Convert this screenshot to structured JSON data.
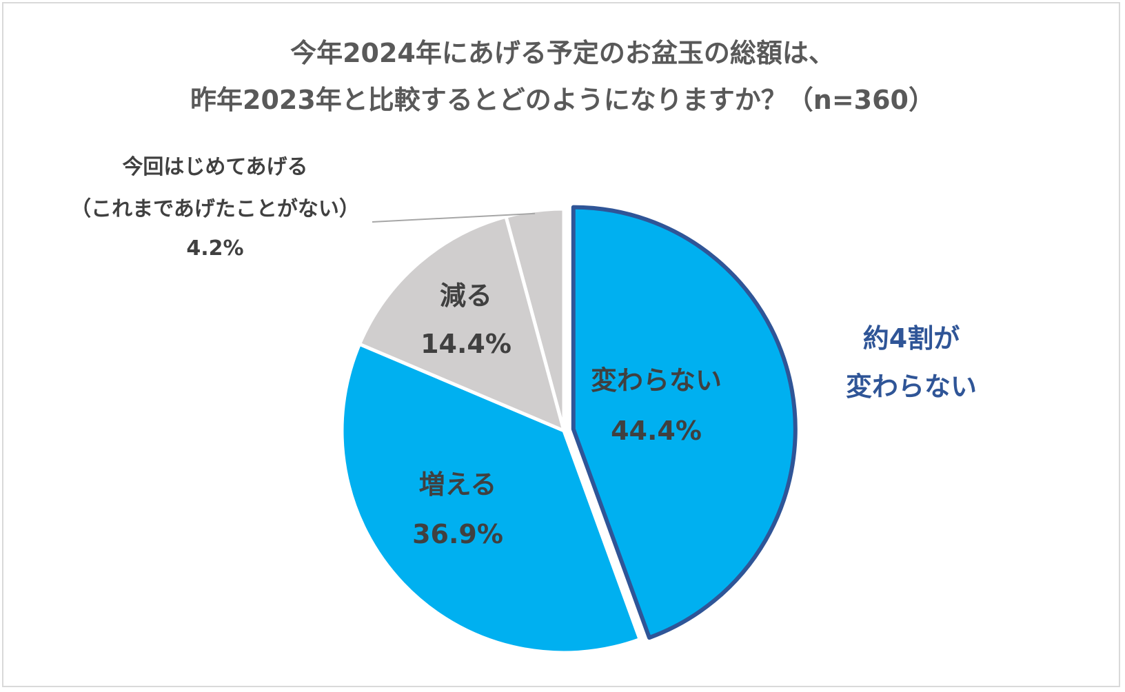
{
  "chart_data": {
    "type": "pie",
    "title_lines": [
      "今年2024年にあげる予定のお盆玉の総額は、",
      "昨年2023年と比較するとどのようになりますか？（n=360）"
    ],
    "slices": [
      {
        "name": "変わらない",
        "value": 44.4,
        "value_label": "44.4%",
        "color": "#00b0f0",
        "highlight": true
      },
      {
        "name": "増える",
        "value": 36.9,
        "value_label": "36.9%",
        "color": "#00b0f0"
      },
      {
        "name": "減る",
        "value": 14.4,
        "value_label": "14.4%",
        "color": "#d0cece"
      },
      {
        "name_lines": [
          "今回はじめてあげる",
          "（これまであげたことがない）"
        ],
        "value": 4.2,
        "value_label": "4.2%",
        "color": "#d0cece"
      }
    ],
    "highlight_border_color": "#2f5597",
    "callout_lines": [
      "約4割が",
      "変わらない"
    ]
  }
}
